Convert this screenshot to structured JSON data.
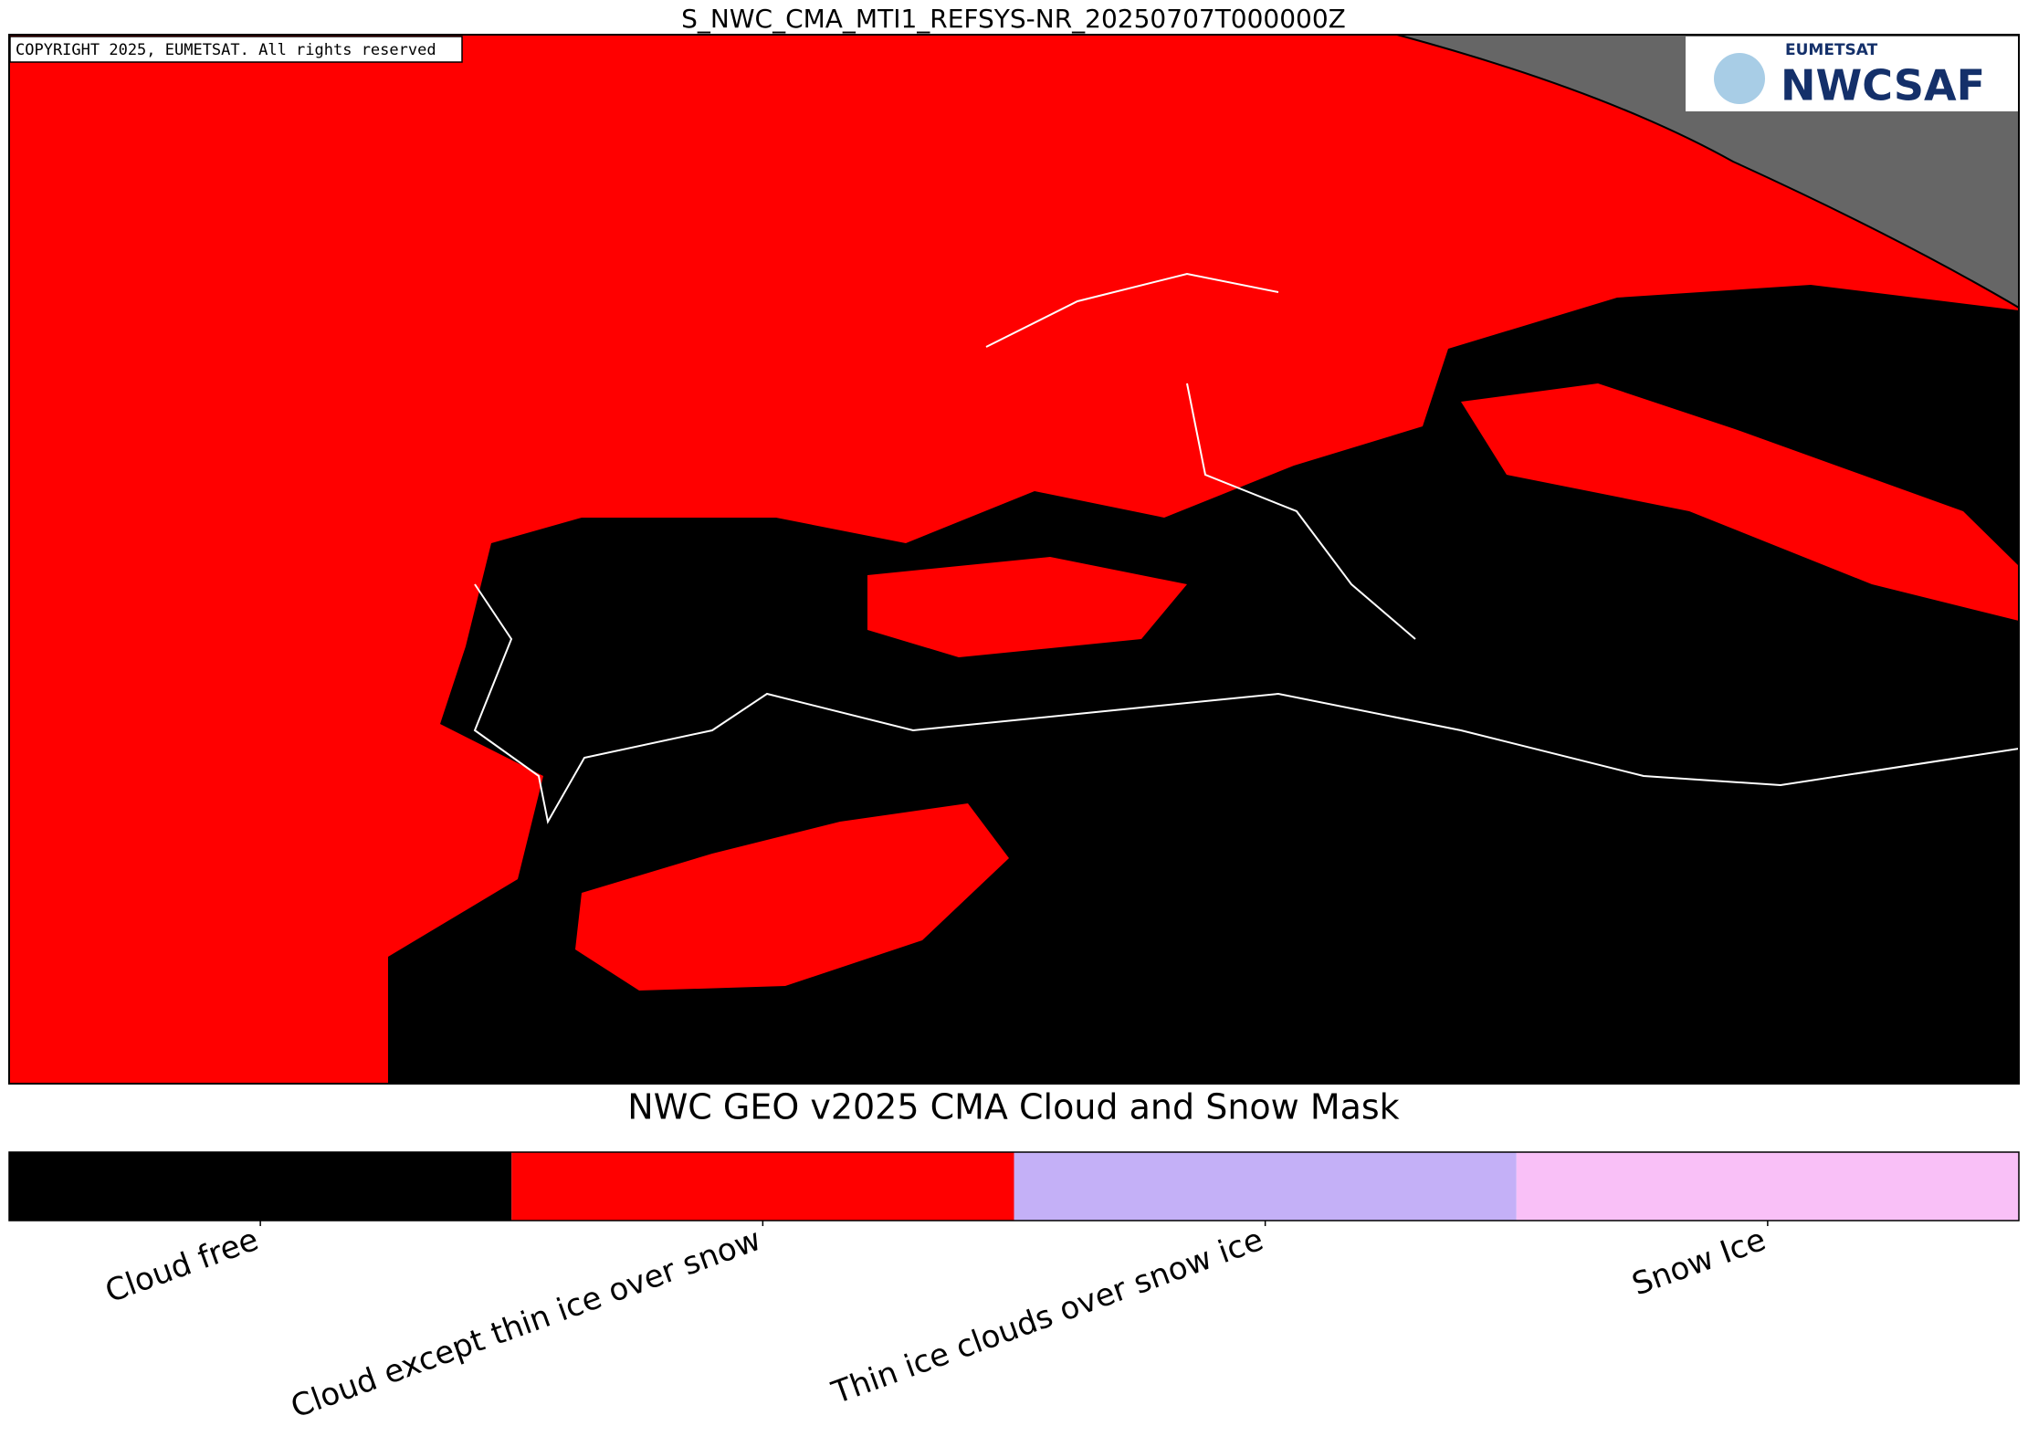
{
  "header": {
    "title": "S_NWC_CMA_MTI1_REFSYS-NR_20250707T000000Z"
  },
  "map": {
    "copyright": "COPYRIGHT 2025, EUMETSAT. All rights reserved",
    "logo": {
      "organization": "EUMETSAT",
      "name": "NWCSAF"
    }
  },
  "legend": {
    "title": "NWC GEO v2025 CMA Cloud and Snow Mask",
    "classes": [
      {
        "label": "Cloud free",
        "color": "#000000"
      },
      {
        "label": "Cloud except thin ice over snow",
        "color": "#ff0000"
      },
      {
        "label": "Thin ice clouds over snow ice",
        "color": "#c4b0f7"
      },
      {
        "label": "Snow Ice",
        "color": "#f9c0f7"
      }
    ]
  }
}
